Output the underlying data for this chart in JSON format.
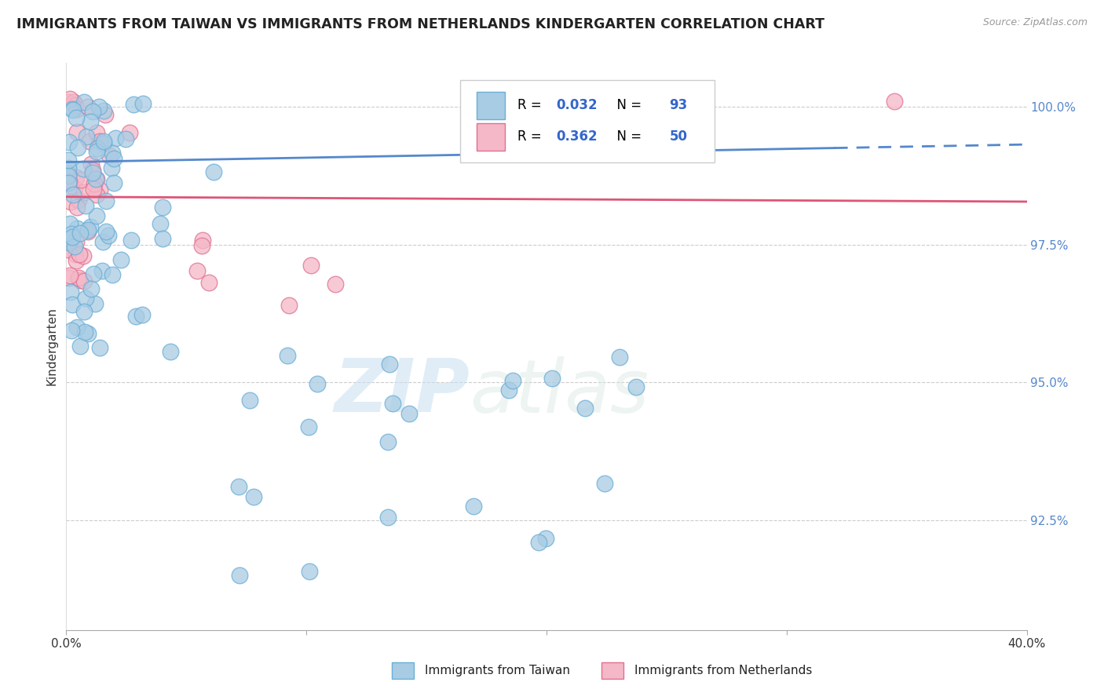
{
  "title": "IMMIGRANTS FROM TAIWAN VS IMMIGRANTS FROM NETHERLANDS KINDERGARTEN CORRELATION CHART",
  "source": "Source: ZipAtlas.com",
  "ylabel": "Kindergarten",
  "xlim": [
    0.0,
    0.4
  ],
  "ylim": [
    0.905,
    1.008
  ],
  "ytick_vals": [
    0.925,
    0.95,
    0.975,
    1.0
  ],
  "ytick_labels": [
    "92.5%",
    "95.0%",
    "97.5%",
    "100.0%"
  ],
  "xtick_vals": [
    0.0,
    0.1,
    0.2,
    0.3,
    0.4
  ],
  "xtick_labels": [
    "0.0%",
    "",
    "",
    "",
    "40.0%"
  ],
  "taiwan_color": "#a8cce4",
  "taiwan_edge": "#6aaed6",
  "netherlands_color": "#f4b8c8",
  "netherlands_edge": "#e07090",
  "taiwan_trend_color": "#5588cc",
  "netherlands_trend_color": "#dd5577",
  "taiwan_trend_solid_end": 0.32,
  "taiwan_trend_dashed_start": 0.32,
  "watermark_zip": "ZIP",
  "watermark_atlas": "atlas",
  "legend_taiwan_R": "0.032",
  "legend_taiwan_N": "93",
  "legend_netherlands_R": "0.362",
  "legend_netherlands_N": "50",
  "taiwan_N": 93,
  "netherlands_N": 50
}
